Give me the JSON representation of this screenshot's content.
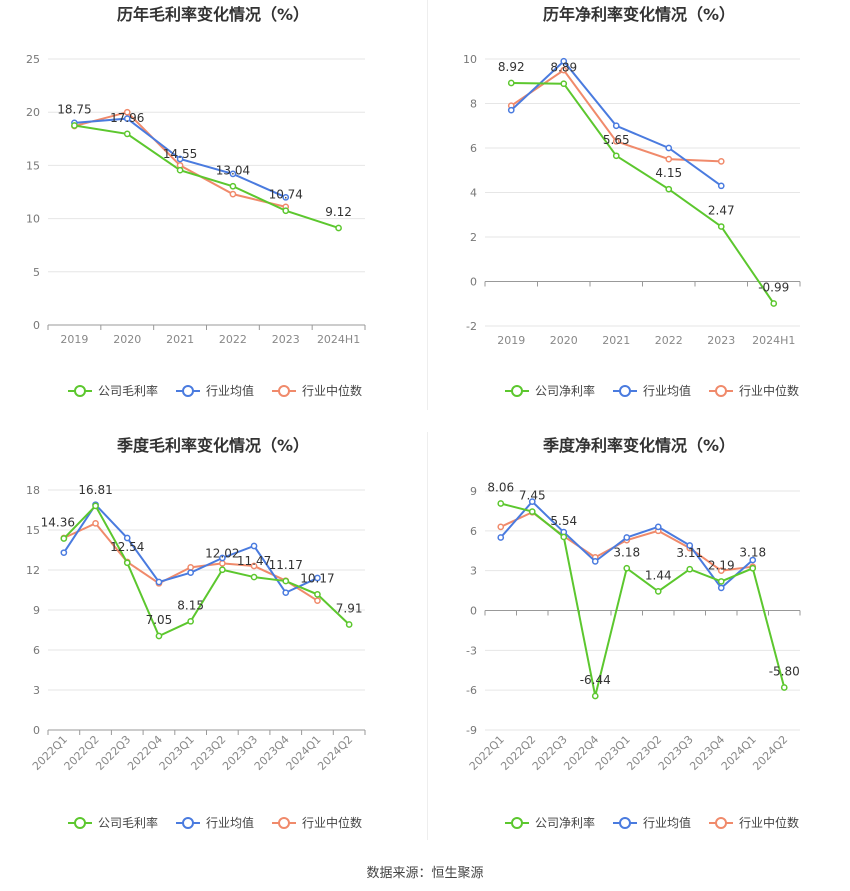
{
  "source": "数据来源：恒生聚源",
  "colors": {
    "company": "#5cc72e",
    "avg": "#4a7bdf",
    "median": "#f08a6b"
  },
  "chart_data": [
    {
      "type": "line",
      "title": "历年毛利率变化情况（%）",
      "categories": [
        "2019",
        "2020",
        "2021",
        "2022",
        "2023",
        "2024H1"
      ],
      "ylim": [
        0,
        25
      ],
      "yticks": [
        0,
        5,
        10,
        15,
        20,
        25
      ],
      "grid": true,
      "legend": "bottom",
      "series": [
        {
          "name": "公司毛利率",
          "key": "company",
          "values": [
            18.75,
            17.96,
            14.55,
            13.04,
            10.74,
            9.12
          ]
        },
        {
          "name": "行业均值",
          "key": "avg",
          "values": [
            19.0,
            19.4,
            15.6,
            14.2,
            12.0,
            null
          ]
        },
        {
          "name": "行业中位数",
          "key": "median",
          "values": [
            18.7,
            20.0,
            15.0,
            12.3,
            11.1,
            null
          ]
        }
      ],
      "labels": [
        {
          "i": 0,
          "text": "18.75"
        },
        {
          "i": 1,
          "text": "17.96"
        },
        {
          "i": 2,
          "text": "14.55"
        },
        {
          "i": 3,
          "text": "13.04"
        },
        {
          "i": 4,
          "text": "10.74"
        },
        {
          "i": 5,
          "text": "9.12"
        }
      ]
    },
    {
      "type": "line",
      "title": "历年净利率变化情况（%）",
      "categories": [
        "2019",
        "2020",
        "2021",
        "2022",
        "2023",
        "2024H1"
      ],
      "ylim": [
        -2,
        10
      ],
      "yticks": [
        -2,
        0,
        2,
        4,
        6,
        8,
        10
      ],
      "grid": true,
      "legend": "bottom",
      "series": [
        {
          "name": "公司净利率",
          "key": "company",
          "values": [
            8.92,
            8.89,
            5.65,
            4.15,
            2.47,
            -0.99
          ]
        },
        {
          "name": "行业均值",
          "key": "avg",
          "values": [
            7.7,
            9.9,
            7.0,
            6.0,
            4.3,
            null
          ]
        },
        {
          "name": "行业中位数",
          "key": "median",
          "values": [
            7.9,
            9.5,
            6.3,
            5.5,
            5.4,
            null
          ]
        }
      ],
      "labels": [
        {
          "i": 0,
          "text": "8.92"
        },
        {
          "i": 1,
          "text": "8.89"
        },
        {
          "i": 2,
          "text": "5.65"
        },
        {
          "i": 3,
          "text": "4.15"
        },
        {
          "i": 4,
          "text": "2.47"
        },
        {
          "i": 5,
          "text": "-0.99"
        }
      ]
    },
    {
      "type": "line",
      "title": "季度毛利率变化情况（%）",
      "categories": [
        "2022Q1",
        "2022Q2",
        "2022Q3",
        "2022Q4",
        "2023Q1",
        "2023Q2",
        "2023Q3",
        "2023Q4",
        "2024Q1",
        "2024Q2"
      ],
      "ylim": [
        0,
        18
      ],
      "yticks": [
        0,
        3,
        6,
        9,
        12,
        15,
        18
      ],
      "grid": true,
      "legend": "bottom",
      "series": [
        {
          "name": "公司毛利率",
          "key": "company",
          "values": [
            14.36,
            16.81,
            12.54,
            7.05,
            8.15,
            12.02,
            11.47,
            11.17,
            10.17,
            7.91
          ]
        },
        {
          "name": "行业均值",
          "key": "avg",
          "values": [
            13.3,
            16.9,
            14.4,
            11.1,
            11.8,
            12.9,
            13.8,
            10.3,
            11.4,
            null
          ]
        },
        {
          "name": "行业中位数",
          "key": "median",
          "values": [
            14.4,
            15.5,
            12.6,
            11.0,
            12.2,
            12.5,
            12.3,
            11.2,
            9.7,
            null
          ]
        }
      ],
      "labels": [
        {
          "i": 0,
          "text": "14.36"
        },
        {
          "i": 1,
          "text": "16.81"
        },
        {
          "i": 2,
          "text": "12.54"
        },
        {
          "i": 3,
          "text": "7.05"
        },
        {
          "i": 4,
          "text": "8.15"
        },
        {
          "i": 5,
          "text": "12.02"
        },
        {
          "i": 6,
          "text": "11.47"
        },
        {
          "i": 7,
          "text": "11.17"
        },
        {
          "i": 8,
          "text": "10.17"
        },
        {
          "i": 9,
          "text": "7.91"
        }
      ]
    },
    {
      "type": "line",
      "title": "季度净利率变化情况（%）",
      "categories": [
        "2022Q1",
        "2022Q2",
        "2022Q3",
        "2022Q4",
        "2023Q1",
        "2023Q2",
        "2023Q3",
        "2023Q4",
        "2024Q1",
        "2024Q2"
      ],
      "ylim": [
        -9,
        9
      ],
      "yticks": [
        -9,
        -6,
        -3,
        0,
        3,
        6,
        9
      ],
      "grid": true,
      "legend": "bottom",
      "series": [
        {
          "name": "公司净利率",
          "key": "company",
          "values": [
            8.06,
            7.45,
            5.54,
            -6.44,
            3.18,
            1.44,
            3.11,
            2.19,
            3.18,
            -5.8
          ]
        },
        {
          "name": "行业均值",
          "key": "avg",
          "values": [
            5.5,
            8.2,
            5.9,
            3.7,
            5.5,
            6.3,
            4.9,
            1.7,
            3.8,
            null
          ]
        },
        {
          "name": "行业中位数",
          "key": "median",
          "values": [
            6.3,
            7.4,
            5.6,
            4.0,
            5.3,
            6.0,
            4.7,
            3.0,
            3.3,
            null
          ]
        }
      ],
      "labels": [
        {
          "i": 0,
          "text": "8.06"
        },
        {
          "i": 1,
          "text": "7.45"
        },
        {
          "i": 2,
          "text": "5.54"
        },
        {
          "i": 3,
          "text": "-6.44"
        },
        {
          "i": 4,
          "text": "3.18"
        },
        {
          "i": 5,
          "text": "1.44"
        },
        {
          "i": 6,
          "text": "3.11"
        },
        {
          "i": 7,
          "text": "2.19"
        },
        {
          "i": 8,
          "text": "3.18"
        },
        {
          "i": 9,
          "text": "-5.80"
        }
      ]
    }
  ]
}
